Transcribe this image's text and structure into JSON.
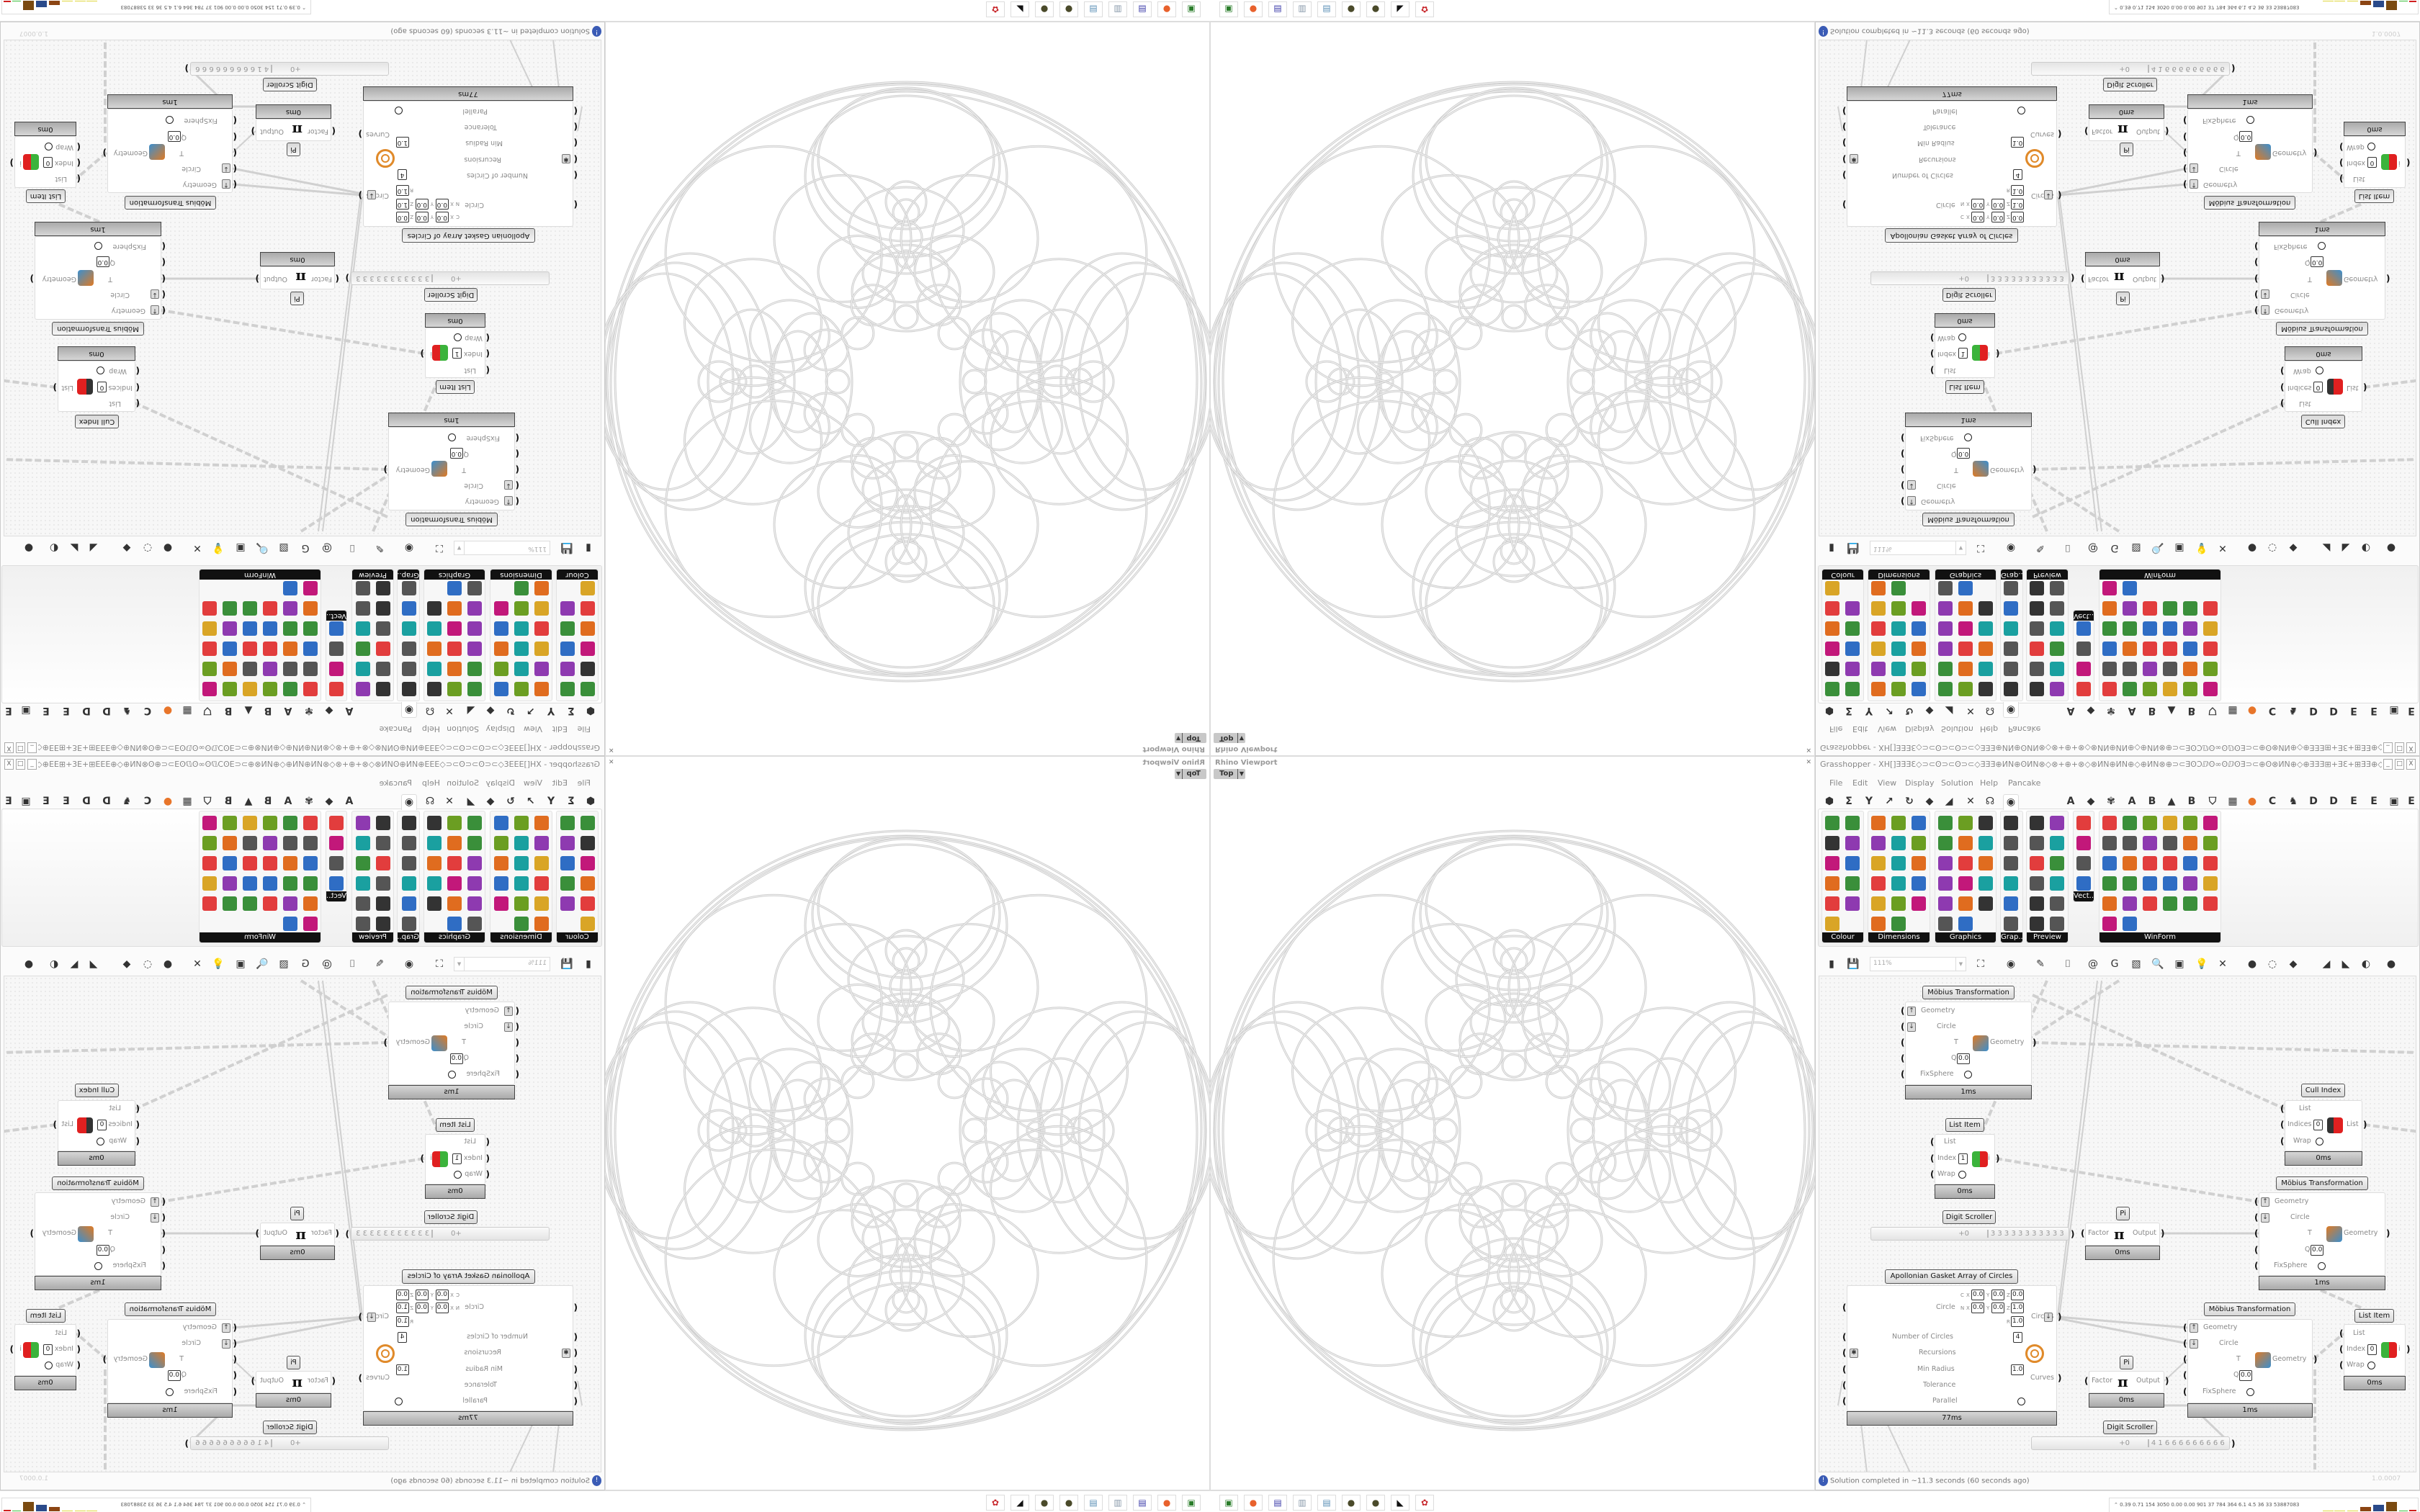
{
  "grasshopper": {
    "title": "Grasshopper - XH[]ƎƎƎƐ◇⊃⊂ʘ⊃⊂ʘ⊃⊂◇ƎƎƎ⊕ИN⊕ʘИN⊗◇⊗+⊕+⊗◇⊗ИN⊕ИN⊕◇⊕ИN⊗⊕⊃⊂ƎʘƆⅅʘ∞ʘⅅʘƎ⊃⊂⊕ʘ⊗ИN⊕◇⊕ƎƎƎ⊞+ƎƐ+⊞ƎƎ⊕◇⊕ʘⅅƎ⊞⊕⊃⊂...",
    "window_buttons": [
      "_",
      "□",
      "X"
    ],
    "menu": [
      "File",
      "Edit",
      "View",
      "Display",
      "Solution",
      "Help",
      "Pancake"
    ],
    "tabs": [
      {
        "name": "params-icon",
        "glyph": "⬢"
      },
      {
        "name": "maths-icon",
        "glyph": "Σ"
      },
      {
        "name": "sets-icon",
        "glyph": "Y"
      },
      {
        "name": "vector-icon",
        "glyph": "↗"
      },
      {
        "name": "curve-icon",
        "glyph": "↻"
      },
      {
        "name": "surface-icon",
        "glyph": "◆"
      },
      {
        "name": "mesh-icon",
        "glyph": "◢"
      },
      {
        "name": "intersect-icon",
        "glyph": "✕"
      },
      {
        "name": "transform-icon",
        "glyph": "☊"
      },
      {
        "name": "display-eye-icon",
        "glyph": "◉",
        "selected": true
      },
      {
        "name": "tab-a-icon",
        "glyph": "A"
      },
      {
        "name": "tab-crystal-icon",
        "glyph": "◆"
      },
      {
        "name": "tab-flower-icon",
        "glyph": "✾"
      },
      {
        "name": "tab-a2-icon",
        "glyph": "A"
      },
      {
        "name": "tab-b-icon",
        "glyph": "B"
      },
      {
        "name": "tab-mountain-icon",
        "glyph": "▲"
      },
      {
        "name": "tab-b2-icon",
        "glyph": "B"
      },
      {
        "name": "tab-shield-icon",
        "glyph": "⛉"
      },
      {
        "name": "tab-grid-icon",
        "glyph": "▦"
      },
      {
        "name": "tab-orange-dot-icon",
        "glyph": "●"
      },
      {
        "name": "tab-c-icon",
        "glyph": "C"
      },
      {
        "name": "tab-bird-icon",
        "glyph": "♞"
      },
      {
        "name": "tab-d-icon",
        "glyph": "D"
      },
      {
        "name": "tab-d2-icon",
        "glyph": "D"
      },
      {
        "name": "tab-e-icon",
        "glyph": "E"
      },
      {
        "name": "tab-e2-icon",
        "glyph": "E"
      },
      {
        "name": "tab-dotted-square-icon",
        "glyph": "▣"
      },
      {
        "name": "tab-e3-icon",
        "glyph": "E"
      }
    ],
    "ribbon_groups": [
      {
        "label": "Colour",
        "cols": 2,
        "icons": [
          "color-wheel",
          "gradient",
          "rgb-cube",
          "colour-triangle",
          "cmyk-cube",
          "hsl",
          "red-sphere",
          "hsv",
          "red-sphere-small",
          "prism",
          "gradient-swatch"
        ]
      },
      {
        "label": "Dimensions",
        "cols": 3,
        "icons": [
          "tag-delete",
          "linear-dimension",
          "angle-dimension",
          "tag",
          "line-dimension",
          "ortho-dimension",
          "magenta-swatch",
          "comb-dimension",
          "arrow-dimension",
          "hatch-grid",
          "angular-dimension",
          "cross-dimension",
          "point-dimension",
          "diagonal-dimension",
          "box-dimension",
          "line-pair",
          "triangle-dimension"
        ]
      },
      {
        "label": "Graphics",
        "cols": 3,
        "icons": [
          "grey-circle",
          "text-outline",
          "eye-ring",
          "dotted-circle",
          "text-t",
          "rounded-square",
          "blur-dot",
          "list-circle",
          "asterisk-circle",
          "ring",
          "link-circle",
          "save-image",
          "gradient-circle",
          "node-circle",
          "save-star",
          "gradient-sphere",
          "image-circle"
        ]
      },
      {
        "label": "Grap...",
        "cols": 1,
        "icons": [
          "bar-chart",
          "legend",
          "pie-ring",
          "line-graph",
          "image-stack",
          "graph-mapper"
        ]
      },
      {
        "label": "Preview",
        "cols": 2,
        "icons": [
          "egg-material",
          "camera",
          "sphere-preview",
          "landscape",
          "blob-blue",
          "heart-mesh",
          "blob-red",
          "heart-green",
          "gradient-square",
          "hearts",
          "script-sl",
          "tree-image"
        ]
      },
      {
        "label": "Vect...",
        "cols": 1,
        "icons": [
          "sort-numbers",
          "points",
          "arrows-red",
          "arrows-green"
        ]
      },
      {
        "label": "WinForm",
        "cols": 6,
        "icons": [
          "font-a",
          "checklist",
          "text-list",
          "label",
          "area-chart",
          "slider-panel",
          "hatch-green",
          "ticker",
          "track",
          "grid-green",
          "pie-edit",
          "panel-yellow",
          "checkbox",
          "text-lines",
          "image-tree",
          "pie-chart",
          "person",
          "list-panel",
          "button-range",
          "cube-box",
          "dual-slider",
          "font-add",
          "ok-button",
          "range-slider",
          "vertical-slider",
          "list-items",
          "green-panel",
          "calendar",
          "spinner",
          "progress",
          "bar-graph",
          "arrow-panel"
        ]
      }
    ],
    "canvas_toolbar": {
      "zoom": "111%",
      "icons": [
        {
          "name": "open-file-icon",
          "glyph": "▮"
        },
        {
          "name": "save-icon",
          "glyph": "💾"
        },
        {
          "name": "zoom-extents-icon",
          "glyph": "⛶"
        },
        {
          "name": "preview-eye-icon",
          "glyph": "◉"
        },
        {
          "name": "sketch-pen-icon",
          "glyph": "✎"
        },
        {
          "name": "cluster-icon",
          "glyph": "⌷"
        },
        {
          "name": "email-icon",
          "glyph": "@"
        },
        {
          "name": "gha-icon",
          "glyph": "G"
        },
        {
          "name": "image-frame-icon",
          "glyph": "▧"
        },
        {
          "name": "search-icon",
          "glyph": "🔍"
        },
        {
          "name": "package-icon",
          "glyph": "▣"
        },
        {
          "name": "bulb-icon",
          "glyph": "💡"
        },
        {
          "name": "wires-icon",
          "glyph": "✕"
        },
        {
          "name": "preview-off-icon",
          "glyph": "●"
        },
        {
          "name": "wireframe-icon",
          "glyph": "◌"
        },
        {
          "name": "shaded-icon",
          "glyph": "◆"
        },
        {
          "name": "bake-icon",
          "glyph": "◢"
        },
        {
          "name": "bake-green-icon",
          "glyph": "◣"
        },
        {
          "name": "half-sphere-icon",
          "glyph": "◐"
        },
        {
          "name": "blue-sphere-icon",
          "glyph": "●"
        }
      ]
    },
    "nodes": {
      "mobius1": {
        "title": "Möbius Transformation",
        "inputs": [
          "Geometry",
          "Circle",
          "T",
          "Q",
          "FixSphere"
        ],
        "q": "0.0",
        "output": "Geometry",
        "time": "1ms"
      },
      "mobius2": {
        "title": "Möbius Transformation",
        "inputs": [
          "Geometry",
          "Circle",
          "T",
          "Q",
          "FixSphere"
        ],
        "q": "0.0",
        "output": "Geometry",
        "time": "1ms"
      },
      "mobius3": {
        "title": "Möbius Transformation",
        "inputs": [
          "Geometry",
          "Circle",
          "T",
          "Q",
          "FixSphere"
        ],
        "q": "0.0",
        "output": "Geometry",
        "time": "1ms"
      },
      "list_item1": {
        "title": "List Item",
        "inputs": [
          "List",
          "Index",
          "Wrap"
        ],
        "index": "1",
        "output": "i",
        "time": "0ms"
      },
      "list_item2": {
        "title": "List Item",
        "inputs": [
          "List",
          "Index",
          "Wrap"
        ],
        "index": "0",
        "output": "i",
        "time": "0ms"
      },
      "cull_index": {
        "title": "Cull Index",
        "inputs": [
          "List",
          "Indices",
          "Wrap"
        ],
        "index": "0",
        "output": "List",
        "time": "0ms"
      },
      "pi1": {
        "title": "Pi",
        "input": "Factor",
        "output": "Output",
        "time": "0ms"
      },
      "pi2": {
        "title": "Pi",
        "input": "Factor",
        "output": "Output",
        "time": "0ms"
      },
      "scroller1": {
        "title": "Digit Scroller",
        "prefix": "+0",
        "digits": "33333333333"
      },
      "scroller2": {
        "title": "Digit Scroller",
        "prefix": "+0",
        "digits": "41666666666"
      },
      "apollonian": {
        "title": "Apollonian Gasket Array of Circles",
        "circle_label": "Circle",
        "c": {
          "x": "0.0",
          "y": "0.0",
          "z": "0.0"
        },
        "n": {
          "x": "0.0",
          "y": "0.0",
          "z": "1.0"
        },
        "r": "1.0",
        "inputs": [
          "Number of Circles",
          "Recursions",
          "Min Radius",
          "Tolerance",
          "Parallel"
        ],
        "number_of_circles": "4",
        "min_radius": "1.0",
        "outputs": [
          "Circles",
          "Curves"
        ],
        "time": "77ms"
      }
    },
    "status": "Solution completed in ~11.3 seconds (60 seconds ago)",
    "version": "1.0.0007"
  },
  "viewport": {
    "title": "Rhino Viewport",
    "view": "Top"
  },
  "stats": {
    "text": "0.39 0.71 154 3050 0.00 0.00 901 37 784 364 6.1 4.5 36 33 53887083"
  },
  "taskbar": [
    {
      "name": "media-player-icon",
      "glyph": "▣",
      "color": "#2a7d2a"
    },
    {
      "name": "firefox-icon",
      "glyph": "●",
      "color": "#e8612c"
    },
    {
      "name": "floppy-64-icon",
      "glyph": "▤",
      "color": "#3b3ba8"
    },
    {
      "name": "scroll-icon",
      "glyph": "▥",
      "color": "#8899aa"
    },
    {
      "name": "notepad-icon",
      "glyph": "▤",
      "color": "#5a8fb5"
    },
    {
      "name": "grasshopper-icon",
      "glyph": "●",
      "color": "#4a4a2a"
    },
    {
      "name": "grasshopper2-icon",
      "glyph": "●",
      "color": "#4a4a2a"
    },
    {
      "name": "rhino-icon",
      "glyph": "◣",
      "color": "#111111"
    },
    {
      "name": "red-app-icon",
      "glyph": "✿",
      "color": "#c8282d"
    }
  ],
  "colors": {
    "accent": "#3a5bb5",
    "footer": "#a9a9a9",
    "wire": "#d0d0d0",
    "viewport_curves": "#cfcfcf"
  }
}
